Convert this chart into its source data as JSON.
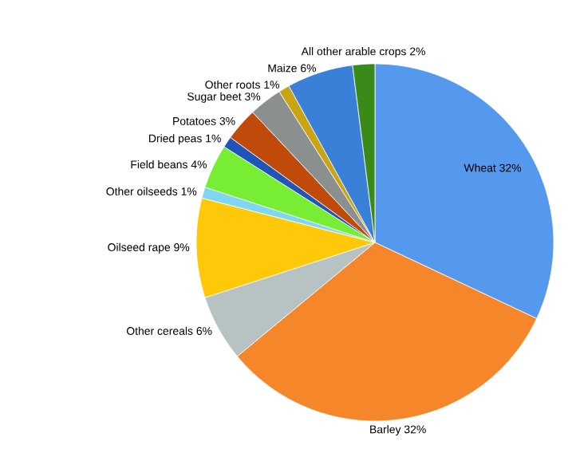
{
  "chart_data": {
    "type": "pie",
    "categories": [
      "Wheat",
      "Barley",
      "Other cereals",
      "Oilseed rape",
      "Other oilseeds",
      "Field beans",
      "Dried peas",
      "Potatoes",
      "Sugar beet",
      "Other roots",
      "Maize",
      "All other arable crops"
    ],
    "values": [
      32,
      32,
      6,
      9,
      1,
      4,
      1,
      3,
      3,
      1,
      6,
      2
    ],
    "value_labels": [
      "32%",
      "32%",
      "6%",
      "9%",
      "1%",
      "4%",
      "1%",
      "3%",
      "3%",
      "1%",
      "6%",
      "2%"
    ],
    "colors": [
      "#5599ee",
      "#f5862a",
      "#b7c2c2",
      "#ffc90a",
      "#7fd6f0",
      "#77ee33",
      "#1f55b8",
      "#c04a0a",
      "#8a9090",
      "#c9a516",
      "#3a7fd8",
      "#3a8a1a"
    ]
  }
}
